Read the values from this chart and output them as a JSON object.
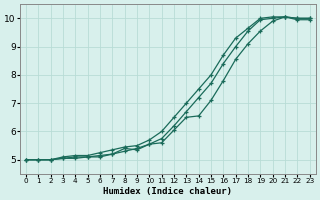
{
  "title": "",
  "xlabel": "Humidex (Indice chaleur)",
  "ylabel": "",
  "background_color": "#d8f0ec",
  "grid_color": "#b8dcd6",
  "line_color": "#1a6b5a",
  "xlim": [
    -0.5,
    23.5
  ],
  "ylim": [
    4.5,
    10.5
  ],
  "xticks": [
    0,
    1,
    2,
    3,
    4,
    5,
    6,
    7,
    8,
    9,
    10,
    11,
    12,
    13,
    14,
    15,
    16,
    17,
    18,
    19,
    20,
    21,
    22,
    23
  ],
  "yticks": [
    5,
    6,
    7,
    8,
    9,
    10
  ],
  "line1_x": [
    0,
    1,
    2,
    3,
    4,
    5,
    6,
    7,
    8,
    9,
    10,
    11,
    12,
    13,
    14,
    15,
    16,
    17,
    18,
    19,
    20,
    21,
    22,
    23
  ],
  "line1_y": [
    5.0,
    5.0,
    5.0,
    5.1,
    5.15,
    5.15,
    5.25,
    5.35,
    5.45,
    5.5,
    5.7,
    6.0,
    6.5,
    7.0,
    7.5,
    8.0,
    8.7,
    9.3,
    9.65,
    10.0,
    10.05,
    10.05,
    10.0,
    10.0
  ],
  "line2_x": [
    0,
    1,
    2,
    3,
    4,
    5,
    6,
    7,
    8,
    9,
    10,
    11,
    12,
    13,
    14,
    15,
    16,
    17,
    18,
    19,
    20,
    21,
    22,
    23
  ],
  "line2_y": [
    5.0,
    5.0,
    5.0,
    5.05,
    5.1,
    5.1,
    5.15,
    5.2,
    5.3,
    5.4,
    5.55,
    5.75,
    6.2,
    6.7,
    7.2,
    7.7,
    8.4,
    9.0,
    9.55,
    9.95,
    10.0,
    10.05,
    10.0,
    10.0
  ],
  "line3_x": [
    0,
    1,
    2,
    3,
    4,
    5,
    6,
    7,
    8,
    9,
    10,
    11,
    12,
    13,
    14,
    15,
    16,
    17,
    18,
    19,
    20,
    21,
    22,
    23
  ],
  "line3_y": [
    5.0,
    5.0,
    5.0,
    5.05,
    5.05,
    5.1,
    5.1,
    5.2,
    5.4,
    5.35,
    5.55,
    5.6,
    6.05,
    6.5,
    6.55,
    7.1,
    7.8,
    8.55,
    9.1,
    9.55,
    9.9,
    10.05,
    9.95,
    9.95
  ]
}
